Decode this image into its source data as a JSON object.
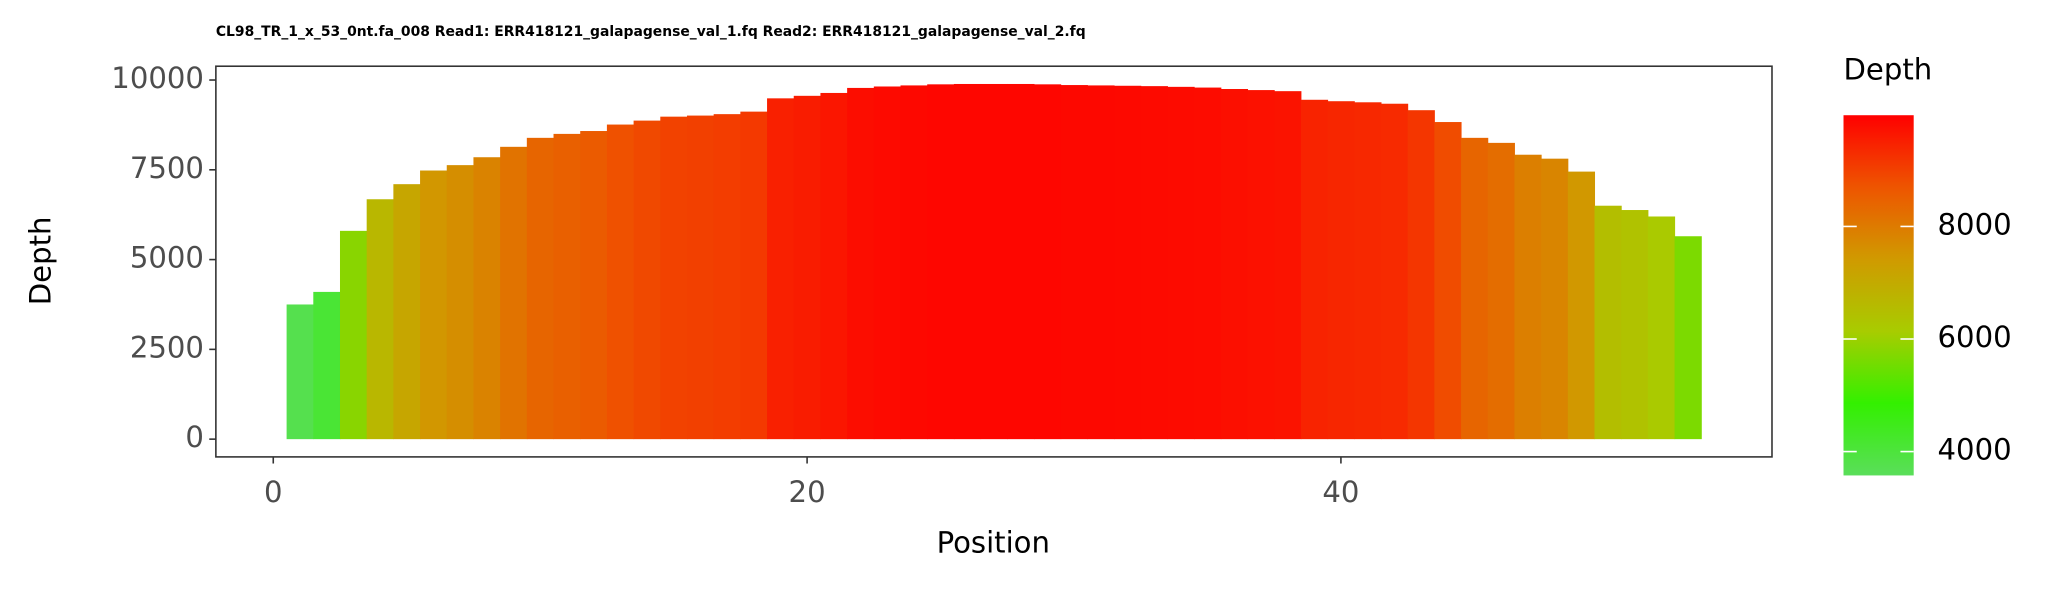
{
  "chart_data": {
    "type": "bar",
    "title": "CL98_TR_1_x_53_0nt.fa_008 Read1: ERR418121_galapagense_val_1.fq Read2: ERR418121_galapagense_val_2.fq",
    "x_label": "Position",
    "y_label": "Depth",
    "x": [
      1,
      2,
      3,
      4,
      5,
      6,
      7,
      8,
      9,
      10,
      11,
      12,
      13,
      14,
      15,
      16,
      17,
      18,
      19,
      20,
      21,
      22,
      23,
      24,
      25,
      26,
      27,
      28,
      29,
      30,
      31,
      32,
      33,
      34,
      35,
      36,
      37,
      38,
      39,
      40,
      41,
      42,
      43,
      44,
      45,
      46,
      47,
      48,
      49,
      50,
      51,
      52,
      53
    ],
    "values": [
      3750,
      4100,
      5800,
      6680,
      7100,
      7480,
      7630,
      7850,
      8140,
      8390,
      8500,
      8580,
      8760,
      8870,
      8980,
      9010,
      9050,
      9120,
      9490,
      9560,
      9640,
      9780,
      9820,
      9850,
      9880,
      9890,
      9890,
      9890,
      9880,
      9860,
      9850,
      9840,
      9830,
      9810,
      9790,
      9750,
      9720,
      9690,
      9450,
      9410,
      9380,
      9340,
      9160,
      8830,
      8390,
      8250,
      7920,
      7810,
      7450,
      6500,
      6380,
      6200,
      5650
    ],
    "xlim": [
      -2.15,
      56.15
    ],
    "xticks": [
      0,
      20,
      40
    ],
    "ylim": [
      -494.5,
      10384.5
    ],
    "yticks": [
      0,
      2500,
      5000,
      7500,
      10000
    ],
    "colorscale": {
      "limits": [
        3576,
        9976
      ],
      "colors": [
        "#5ade5a",
        "#33f000",
        "#a8cc00",
        "#d09a00",
        "#ee5500",
        "#ff0000"
      ]
    },
    "legend": {
      "title": "Depth",
      "ticks": [
        4000,
        6000,
        8000
      ]
    }
  }
}
